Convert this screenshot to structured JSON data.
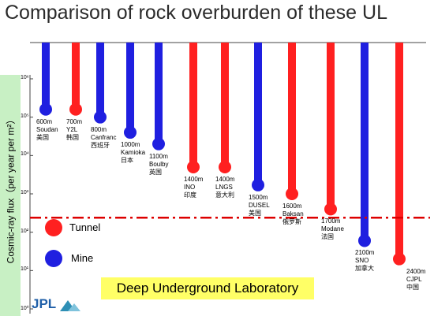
{
  "chart_data": {
    "type": "bar",
    "title": "Comparison of rock overburden of these UL",
    "ylabel": "Cosmic-ray flux（per year per m²）",
    "y_scale": "log",
    "ylim": [
      1,
      1000000
    ],
    "y_ticks": [
      {
        "label": "10⁶",
        "value": 1000000
      },
      {
        "label": "10⁵",
        "value": 100000
      },
      {
        "label": "10⁴",
        "value": 10000
      },
      {
        "label": "10³",
        "value": 1000
      },
      {
        "label": "10²",
        "value": 100
      },
      {
        "label": "10¹",
        "value": 10
      },
      {
        "label": "10⁰",
        "value": 1
      }
    ],
    "sites": [
      {
        "depth": "600m",
        "name": "Soudan",
        "country": "美国",
        "type": "Mine",
        "flux": 160000
      },
      {
        "depth": "700m",
        "name": "Y2L",
        "country": "韩国",
        "type": "Tunnel",
        "flux": 160000
      },
      {
        "depth": "800m",
        "name": "Canfranc",
        "country": "西班牙",
        "type": "Mine",
        "flux": 100000
      },
      {
        "depth": "1000m",
        "name": "Kamioka",
        "country": "日本",
        "type": "Mine",
        "flux": 40000
      },
      {
        "depth": "1100m",
        "name": "Boulby",
        "country": "英国",
        "type": "Mine",
        "flux": 20000
      },
      {
        "depth": "1400m",
        "name": "INO",
        "country": "印度",
        "type": "Tunnel",
        "flux": 5000
      },
      {
        "depth": "1400m",
        "name": "LNGS",
        "country": "意大利",
        "type": "Tunnel",
        "flux": 5000
      },
      {
        "depth": "1500m",
        "name": "DUSEL",
        "country": "美国",
        "type": "Mine",
        "flux": 1700
      },
      {
        "depth": "1600m",
        "name": "Baksan",
        "country": "俄罗斯",
        "type": "Tunnel",
        "flux": 1000
      },
      {
        "depth": "1700m",
        "name": "Modane",
        "country": "法国",
        "type": "Tunnel",
        "flux": 400
      },
      {
        "depth": "2100m",
        "name": "SNO",
        "country": "加拿大",
        "type": "Mine",
        "flux": 60
      },
      {
        "depth": "2400m",
        "name": "CJPL",
        "country": "中国",
        "type": "Tunnel",
        "flux": 20
      }
    ],
    "legend": [
      {
        "label": "Tunnel",
        "color": "#ff2020"
      },
      {
        "label": "Mine",
        "color": "#1f1fe0"
      }
    ],
    "threshold": {
      "label": "Deep Underground Laboratory",
      "value": 70,
      "color": "#dd0000"
    },
    "grid": false
  },
  "colors": {
    "tunnel": "#ff2020",
    "mine": "#1f1fe0",
    "highlight_box": "#ffff66",
    "ylabel_box": "#c8f0c4"
  },
  "logo_text": "JPL"
}
